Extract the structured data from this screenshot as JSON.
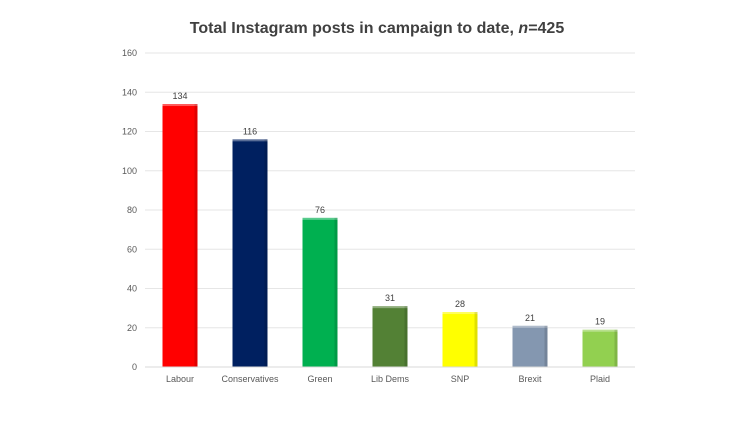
{
  "chart_data": {
    "type": "bar",
    "title_prefix": "Total Instagram posts in campaign to date, ",
    "title_n_label": "n",
    "title_n_value": "=425",
    "categories": [
      "Labour",
      "Conservatives",
      "Green",
      "Lib Dems",
      "SNP",
      "Brexit",
      "Plaid"
    ],
    "values": [
      134,
      116,
      76,
      31,
      28,
      21,
      19
    ],
    "colors": [
      "#ff0000",
      "#002060",
      "#00b050",
      "#538135",
      "#ffff00",
      "#8497b0",
      "#92d050"
    ],
    "ylim": [
      0,
      160
    ],
    "yticks": [
      0,
      20,
      40,
      60,
      80,
      100,
      120,
      140,
      160
    ],
    "grid": true,
    "xlabel": "",
    "ylabel": ""
  }
}
